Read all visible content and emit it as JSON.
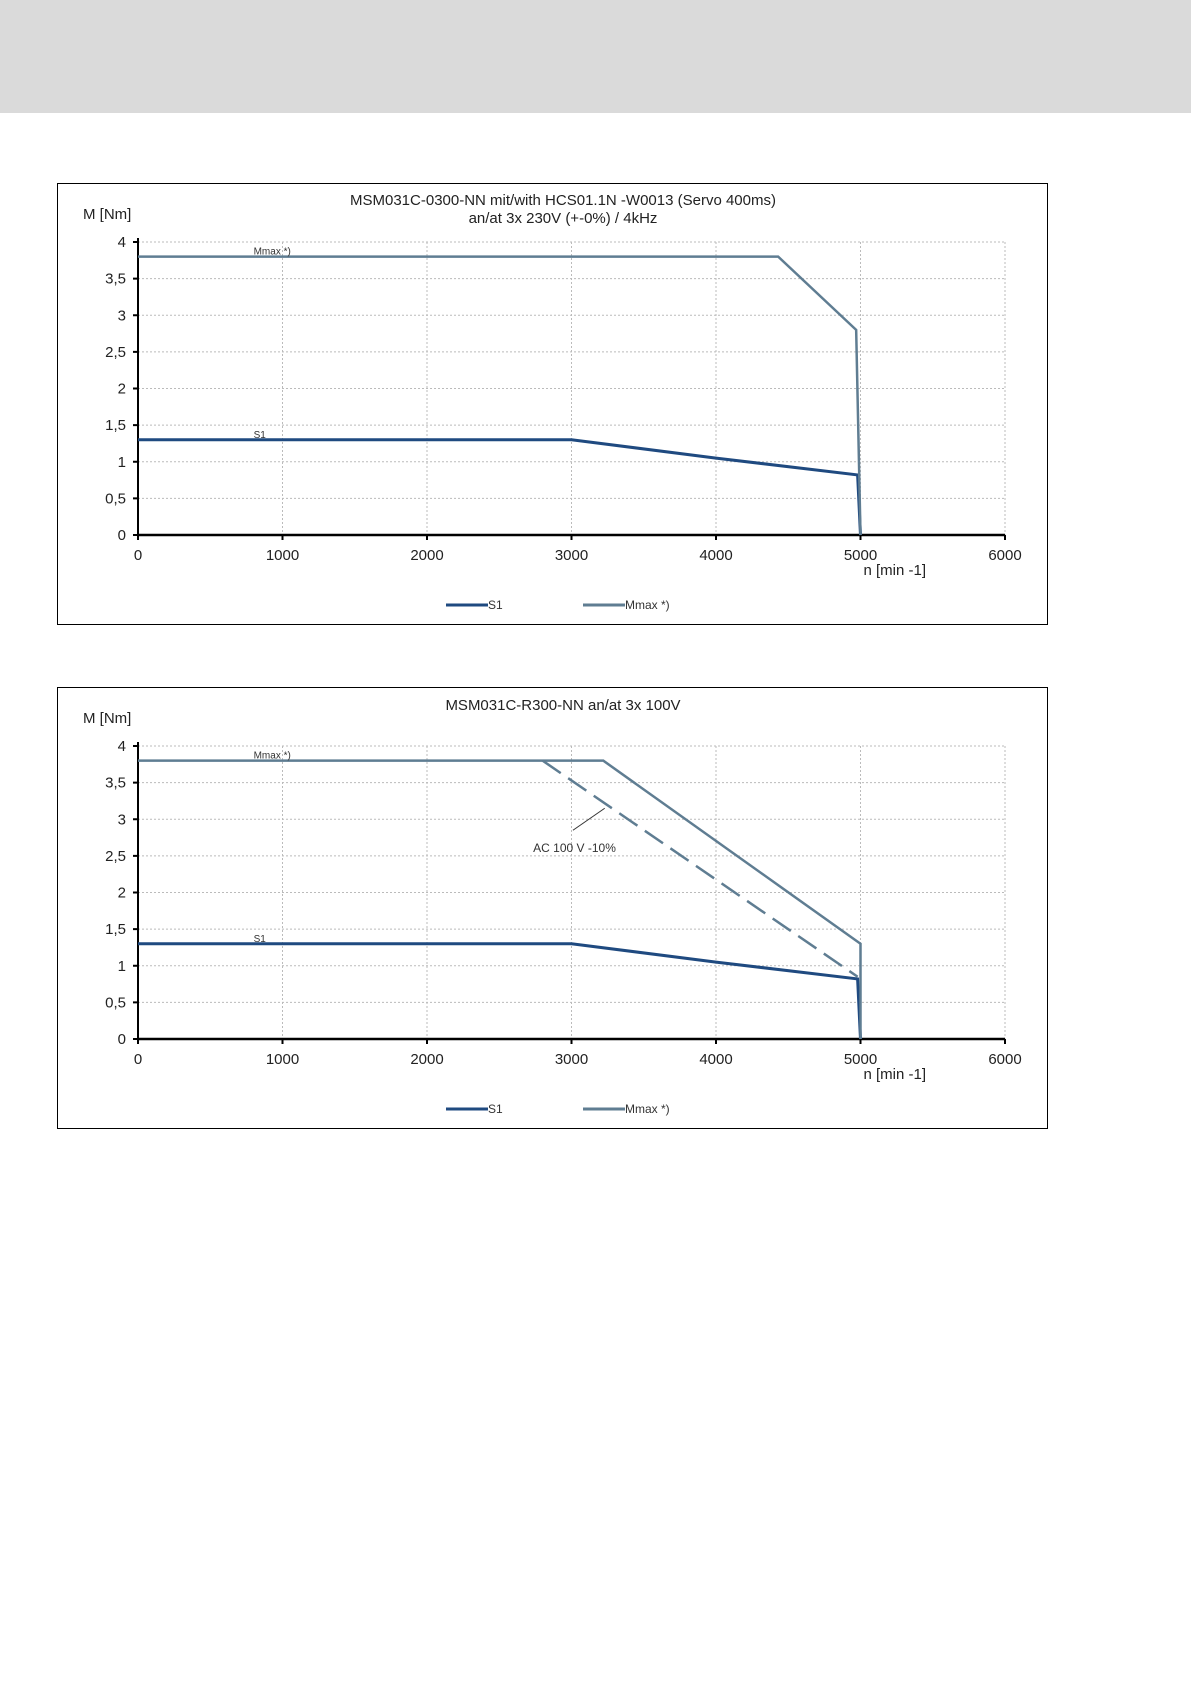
{
  "chart_data": [
    {
      "type": "line",
      "title": "MSM031C-0300-NN mit/with HCS01.1N -W0013 (Servo 400ms)",
      "subtitle": "an/at 3x 230V (+-0%) / 4kHz",
      "ylabel": "M [Nm]",
      "xlabel": "n [min -1]",
      "xlim": [
        0,
        6000
      ],
      "ylim": [
        0,
        4
      ],
      "xticks": [
        "0",
        "1000",
        "2000",
        "3000",
        "4000",
        "5000",
        "6000"
      ],
      "yticks": [
        "0",
        "0,5",
        "1",
        "1,5",
        "2",
        "2,5",
        "3",
        "3,5",
        "4"
      ],
      "grid": true,
      "legend": "bottom",
      "series": [
        {
          "name": "S1",
          "color": "#1f4a80",
          "x": [
            0,
            3000,
            4000,
            4980,
            5000
          ],
          "y": [
            1.3,
            1.3,
            1.05,
            0.82,
            0
          ]
        },
        {
          "name": "Mmax *)",
          "color": "#5f7d92",
          "x": [
            0,
            4430,
            4970,
            5000
          ],
          "y": [
            3.8,
            3.8,
            2.8,
            0
          ]
        }
      ],
      "annotations": [
        {
          "text": "Mmax *)",
          "x": 800,
          "y": 3.8
        },
        {
          "text": "S1",
          "x": 800,
          "y": 1.3
        }
      ]
    },
    {
      "type": "line",
      "title": "MSM031C-R300-NN an/at 3x 100V",
      "subtitle": "",
      "ylabel": "M [Nm]",
      "xlabel": "n [min -1]",
      "xlim": [
        0,
        6000
      ],
      "ylim": [
        0,
        4
      ],
      "xticks": [
        "0",
        "1000",
        "2000",
        "3000",
        "4000",
        "5000",
        "6000"
      ],
      "yticks": [
        "0",
        "0,5",
        "1",
        "1,5",
        "2",
        "2,5",
        "3",
        "3,5",
        "4"
      ],
      "grid": true,
      "legend": "bottom",
      "series": [
        {
          "name": "S1",
          "color": "#1f4a80",
          "x": [
            0,
            3000,
            4000,
            4980,
            5000
          ],
          "y": [
            1.3,
            1.3,
            1.05,
            0.82,
            0
          ]
        },
        {
          "name": "Mmax *)",
          "color": "#5f7d92",
          "x": [
            0,
            3220,
            5000,
            5000
          ],
          "y": [
            3.8,
            3.8,
            1.3,
            0
          ]
        },
        {
          "color": "#5f7d92",
          "dashed": true,
          "x": [
            2800,
            4980
          ],
          "y": [
            3.8,
            0.85
          ]
        }
      ],
      "annotations": [
        {
          "text": "Mmax *)",
          "x": 800,
          "y": 3.8
        },
        {
          "text": "S1",
          "x": 800,
          "y": 1.3
        },
        {
          "text": "AC 100 V -10%",
          "x": 3150,
          "y": 2.72
        }
      ]
    }
  ]
}
